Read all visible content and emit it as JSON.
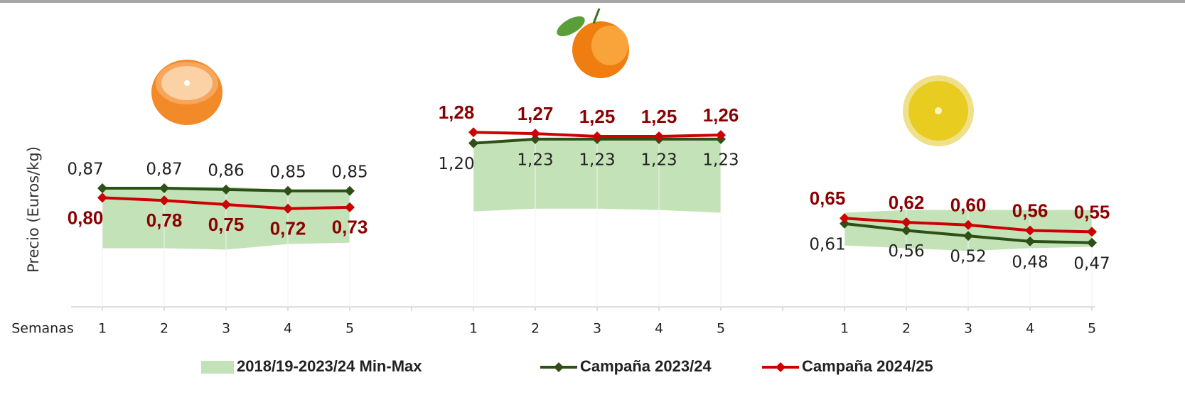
{
  "chart_data": {
    "type": "line",
    "y_label": "Precio (Euros/kg)",
    "x_label": "Semanas",
    "categories": [
      "1",
      "2",
      "3",
      "4",
      "5",
      "1",
      "2",
      "3",
      "4",
      "5",
      "1",
      "2",
      "3",
      "4",
      "5"
    ],
    "series": [
      {
        "name": "2018/19-2023/24 Min-Max",
        "kind": "band",
        "color": "#c4e2b8",
        "max": [
          0.88,
          0.88,
          0.88,
          0.86,
          0.86,
          1.21,
          1.23,
          1.23,
          1.23,
          1.23,
          0.69,
          0.71,
          0.71,
          0.71,
          0.71
        ],
        "min": [
          0.43,
          0.43,
          0.42,
          0.46,
          0.47,
          0.7,
          0.72,
          0.72,
          0.71,
          0.69,
          0.45,
          0.43,
          0.41,
          0.43,
          0.44
        ]
      },
      {
        "name": "Campaña 2023/24",
        "kind": "line",
        "color": "#2d5016",
        "label_color": "#222222",
        "values": [
          0.87,
          0.87,
          0.86,
          0.85,
          0.85,
          1.2,
          1.23,
          1.23,
          1.23,
          1.23,
          0.61,
          0.56,
          0.52,
          0.48,
          0.47
        ],
        "value_labels": [
          "0,87",
          "0,87",
          "0,86",
          "0,85",
          "0,85",
          "1,20",
          "1,23",
          "1,23",
          "1,23",
          "1,23",
          "0,61",
          "0,56",
          "0,52",
          "0,48",
          "0,47"
        ]
      },
      {
        "name": "Campaña 2024/25",
        "kind": "line",
        "color": "#cc0000",
        "label_color": "#8b0000",
        "bold": true,
        "values": [
          0.8,
          0.78,
          0.75,
          0.72,
          0.73,
          1.28,
          1.27,
          1.25,
          1.25,
          1.26,
          0.65,
          0.62,
          0.6,
          0.56,
          0.55
        ],
        "value_labels": [
          "0,80",
          "0,78",
          "0,75",
          "0,72",
          "0,73",
          "1,28",
          "1,27",
          "1,25",
          "1,25",
          "1,26",
          "0,65",
          "0,62",
          "0,60",
          "0,56",
          "0,55"
        ]
      }
    ]
  }
}
